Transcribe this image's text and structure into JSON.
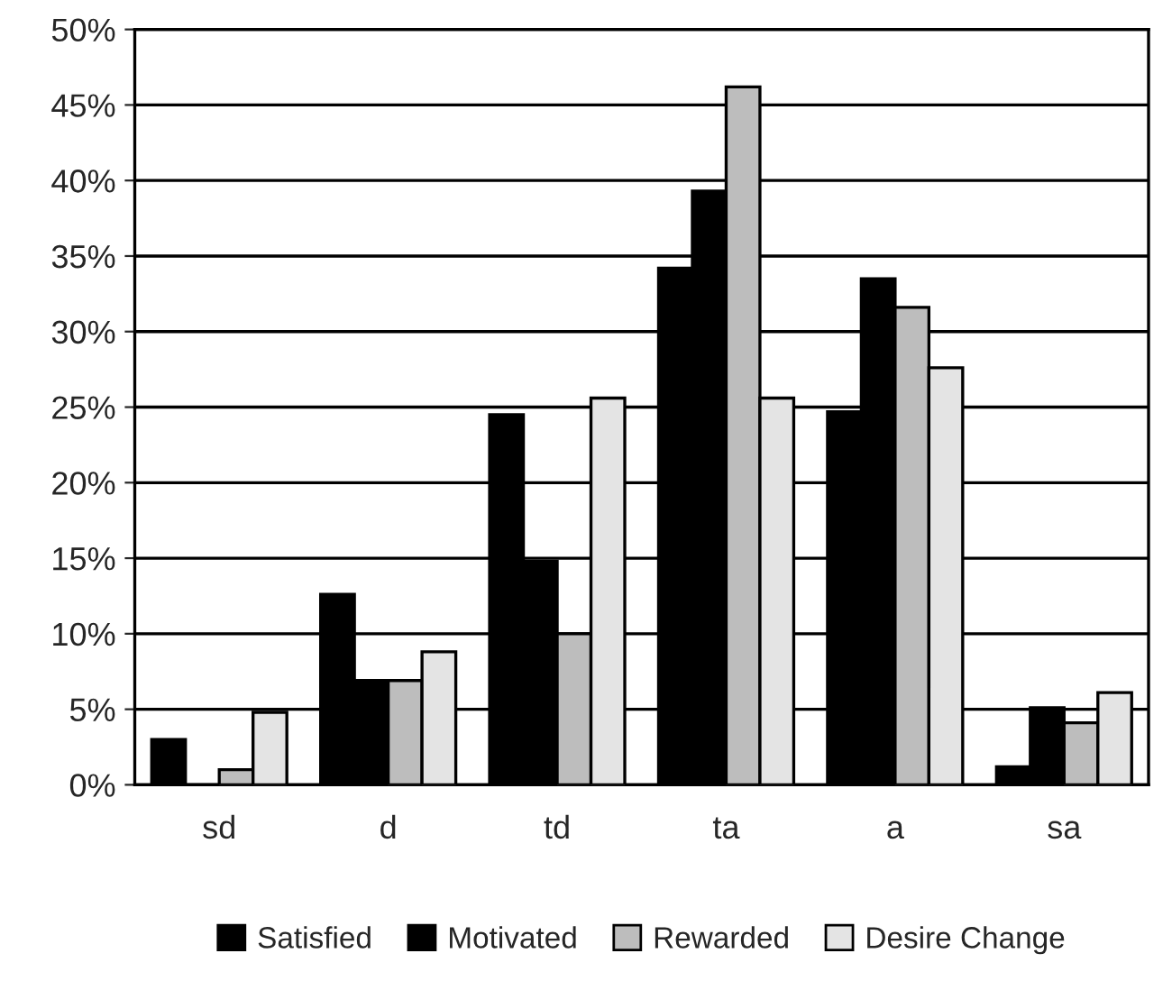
{
  "chart_data": {
    "type": "bar",
    "categories": [
      "sd",
      "d",
      "td",
      "ta",
      "a",
      "sa"
    ],
    "series": [
      {
        "name": "Satisfied",
        "color": "#000000",
        "values": [
          3.0,
          12.6,
          24.5,
          34.2,
          24.7,
          1.2
        ]
      },
      {
        "name": "Motivated",
        "color": "#000000",
        "values": [
          0,
          6.9,
          14.8,
          39.3,
          33.5,
          5.1
        ]
      },
      {
        "name": "Rewarded",
        "color": "#bdbdbd",
        "values": [
          1.0,
          6.9,
          10.0,
          46.2,
          31.6,
          4.1
        ]
      },
      {
        "name": "Desire Change",
        "color": "#e4e4e4",
        "values": [
          4.8,
          8.8,
          25.6,
          25.6,
          27.6,
          6.1
        ]
      }
    ],
    "ylim": [
      0,
      50
    ],
    "yticks": [
      {
        "value": 0,
        "label": "0%"
      },
      {
        "value": 5,
        "label": "5%"
      },
      {
        "value": 10,
        "label": "10%"
      },
      {
        "value": 15,
        "label": "15%"
      },
      {
        "value": 20,
        "label": "20%"
      },
      {
        "value": 25,
        "label": "25%"
      },
      {
        "value": 30,
        "label": "30%"
      },
      {
        "value": 35,
        "label": "35%"
      },
      {
        "value": 40,
        "label": "40%"
      },
      {
        "value": 45,
        "label": "45%"
      },
      {
        "value": 50,
        "label": "50%"
      }
    ],
    "grid": "y",
    "legend": "bottom"
  }
}
